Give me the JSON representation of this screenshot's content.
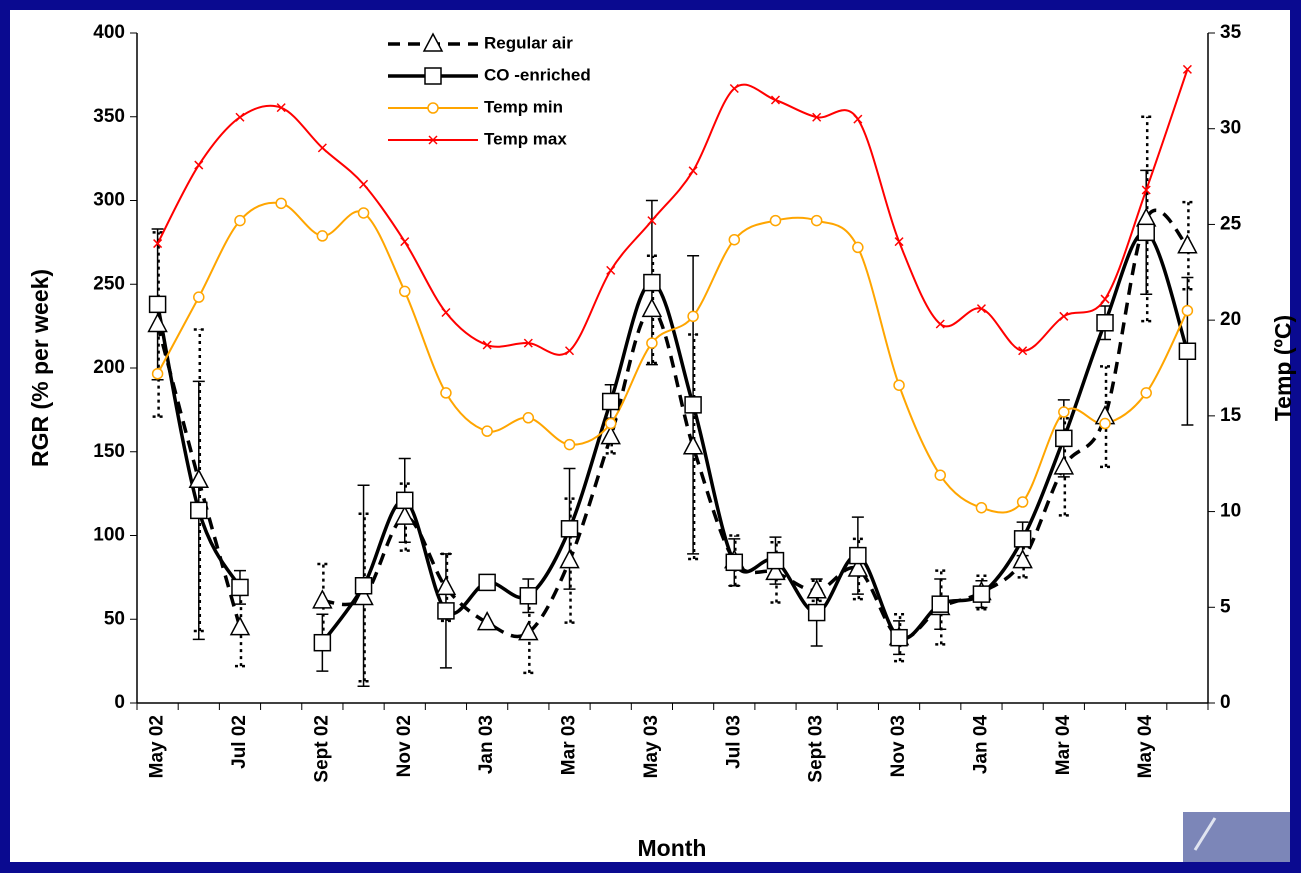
{
  "chart_data": {
    "type": "line",
    "x_label": "Month",
    "y_label": "RGR (% per week)",
    "y2_label": "Temp (ºC)",
    "categories": [
      "May 02",
      null,
      "Jul 02",
      null,
      "Sept 02",
      null,
      "Nov 02",
      null,
      "Jan 03",
      null,
      "Mar 03",
      null,
      "May 03",
      null,
      "Jul 03",
      null,
      "Sept 03",
      null,
      "Nov 03",
      null,
      "Jan 04",
      null,
      "Mar 04",
      null,
      "May 04",
      null
    ],
    "ylim": [
      0,
      400
    ],
    "yticks": [
      0,
      50,
      100,
      150,
      200,
      250,
      300,
      350,
      400
    ],
    "y2lim": [
      0,
      35
    ],
    "y2ticks": [
      0,
      5,
      10,
      15,
      20,
      25,
      30,
      35
    ],
    "series": [
      {
        "name": "Regular air",
        "color": "#000000",
        "marker": "triangle",
        "dash": "dashed",
        "axis": "y",
        "values": [
          226,
          133,
          45,
          null,
          61,
          63,
          111,
          69,
          48,
          42,
          85,
          159,
          235,
          153,
          85,
          78,
          67,
          80,
          39,
          57,
          66,
          85,
          141,
          171,
          289,
          273
        ],
        "errors": [
          55,
          90,
          23,
          null,
          22,
          50,
          20,
          20,
          0,
          24,
          37,
          10,
          32,
          67,
          15,
          18,
          6,
          18,
          14,
          22,
          10,
          10,
          29,
          30,
          61,
          26
        ]
      },
      {
        "name": "CO -enriched",
        "color": "#000000",
        "marker": "square",
        "dash": "solid",
        "axis": "y",
        "values": [
          238,
          115,
          69,
          null,
          36,
          70,
          121,
          55,
          72,
          64,
          104,
          180,
          251,
          178,
          84,
          85,
          54,
          88,
          39,
          59,
          65,
          98,
          158,
          227,
          281,
          210
        ],
        "errors": [
          45,
          77,
          10,
          null,
          17,
          60,
          25,
          34,
          0,
          10,
          36,
          10,
          49,
          89,
          14,
          14,
          20,
          23,
          10,
          15,
          8,
          10,
          23,
          10,
          37,
          44
        ]
      },
      {
        "name": "Temp min",
        "color": "#ffa500",
        "marker": "circle",
        "dash": "solid",
        "axis": "y2",
        "values": [
          17.2,
          21.2,
          25.2,
          26.1,
          24.4,
          25.6,
          21.5,
          16.2,
          14.2,
          14.9,
          13.5,
          14.6,
          18.8,
          20.2,
          24.2,
          25.2,
          25.2,
          23.8,
          16.6,
          11.9,
          10.2,
          10.5,
          15.2,
          14.6,
          16.2,
          20.5
        ]
      },
      {
        "name": "Temp max",
        "color": "#ff0000",
        "marker": "cross",
        "dash": "solid",
        "axis": "y2",
        "values": [
          24.0,
          28.1,
          30.6,
          31.1,
          29.0,
          27.1,
          24.1,
          20.4,
          18.7,
          18.8,
          18.4,
          22.6,
          25.2,
          27.8,
          32.1,
          31.5,
          30.6,
          30.5,
          24.1,
          19.8,
          20.6,
          18.4,
          20.2,
          21.1,
          26.8,
          33.1
        ]
      }
    ]
  }
}
